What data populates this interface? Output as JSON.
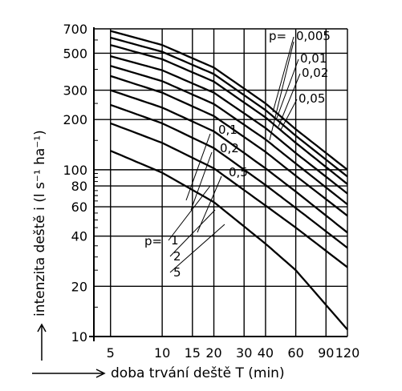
{
  "chart_data": {
    "type": "line",
    "title": "",
    "xlabel": "doba trvání deště T (min)",
    "ylabel": "intenzita deště i (l s⁻¹ ha⁻¹)",
    "x_scale": "log",
    "y_scale": "log",
    "xlim": [
      4,
      120
    ],
    "ylim": [
      10,
      700
    ],
    "grid": true,
    "x_ticks": [
      "5",
      "10",
      "15",
      "20",
      "30",
      "40",
      "60",
      "90",
      "120"
    ],
    "y_ticks": [
      "700",
      "500",
      "300",
      "200",
      "100",
      "80",
      "60",
      "40",
      "20",
      "10"
    ],
    "series": [
      {
        "name": "0.005",
        "points": [
          [
            5,
            680
          ],
          [
            10,
            560
          ],
          [
            20,
            410
          ],
          [
            40,
            250
          ],
          [
            60,
            175
          ],
          [
            120,
            100
          ]
        ]
      },
      {
        "name": "0.01",
        "points": [
          [
            5,
            620
          ],
          [
            10,
            510
          ],
          [
            20,
            375
          ],
          [
            40,
            228
          ],
          [
            60,
            160
          ],
          [
            120,
            91
          ]
        ]
      },
      {
        "name": "0.02",
        "points": [
          [
            5,
            560
          ],
          [
            10,
            460
          ],
          [
            20,
            338
          ],
          [
            40,
            206
          ],
          [
            60,
            145
          ],
          [
            120,
            82
          ]
        ]
      },
      {
        "name": "0.05",
        "points": [
          [
            5,
            480
          ],
          [
            10,
            395
          ],
          [
            20,
            290
          ],
          [
            40,
            178
          ],
          [
            60,
            126
          ],
          [
            120,
            72
          ]
        ]
      },
      {
        "name": "0.1",
        "points": [
          [
            5,
            420
          ],
          [
            10,
            340
          ],
          [
            20,
            248
          ],
          [
            40,
            152
          ],
          [
            60,
            109
          ],
          [
            120,
            62
          ]
        ]
      },
      {
        "name": "0.2",
        "points": [
          [
            5,
            365
          ],
          [
            10,
            290
          ],
          [
            20,
            210
          ],
          [
            40,
            128
          ],
          [
            60,
            92
          ],
          [
            120,
            53
          ]
        ]
      },
      {
        "name": "0.5",
        "points": [
          [
            5,
            300
          ],
          [
            10,
            236
          ],
          [
            20,
            170
          ],
          [
            40,
            102
          ],
          [
            60,
            74
          ],
          [
            120,
            42
          ]
        ]
      },
      {
        "name": "1",
        "points": [
          [
            5,
            245
          ],
          [
            10,
            190
          ],
          [
            20,
            135
          ],
          [
            40,
            81
          ],
          [
            60,
            59
          ],
          [
            120,
            34
          ]
        ]
      },
      {
        "name": "2",
        "points": [
          [
            5,
            190
          ],
          [
            10,
            145
          ],
          [
            20,
            102
          ],
          [
            40,
            61
          ],
          [
            60,
            45
          ],
          [
            120,
            26
          ]
        ]
      },
      {
        "name": "5",
        "points": [
          [
            5,
            130
          ],
          [
            10,
            96
          ],
          [
            20,
            64
          ],
          [
            40,
            36
          ],
          [
            60,
            25
          ],
          [
            120,
            11
          ]
        ]
      }
    ],
    "annotations": {
      "p_label_top": "p=",
      "p_label_bottom": "p="
    }
  }
}
